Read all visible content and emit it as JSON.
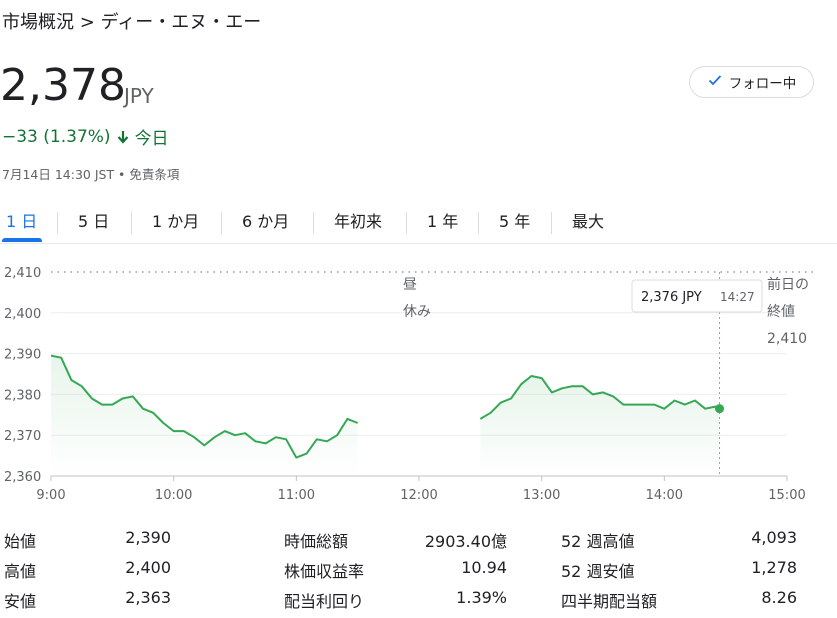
{
  "breadcrumb": "市場概況 > ディー・エヌ・エー",
  "price": "2,378",
  "currency": "JPY",
  "change": {
    "amount": "−33 (1.37%)",
    "period": "今日",
    "direction": "down",
    "color": "#137333"
  },
  "meta": "7月14日 14:30 JST • 免責条項",
  "follow_button": {
    "label": "フォロー中",
    "icon": "check-icon"
  },
  "tabs": [
    "1 日",
    "5 日",
    "1 か月",
    "6 か月",
    "年初来",
    "1 年",
    "5 年",
    "最大"
  ],
  "active_tab": 0,
  "tooltip": {
    "price": "2,376 JPY",
    "time": "14:27"
  },
  "break_label": [
    "昼",
    "休み"
  ],
  "prev_close_label": [
    "前日の",
    "終値",
    "2,410"
  ],
  "chart_data": {
    "type": "line",
    "line_color": "#34a853",
    "ylim": [
      2360,
      2410
    ],
    "yticks": [
      "2,410",
      "2,400",
      "2,390",
      "2,380",
      "2,370",
      "2,360"
    ],
    "xticks": [
      "9:00",
      "10:00",
      "11:00",
      "12:00",
      "13:00",
      "14:00",
      "15:00"
    ],
    "previous_close": 2410,
    "series": [
      {
        "session": "morning",
        "points": [
          [
            "9:00",
            2389.5
          ],
          [
            "9:05",
            2389
          ],
          [
            "9:10",
            2383.5
          ],
          [
            "9:15",
            2382
          ],
          [
            "9:20",
            2379
          ],
          [
            "9:25",
            2377.5
          ],
          [
            "9:30",
            2377.5
          ],
          [
            "9:35",
            2379
          ],
          [
            "9:40",
            2379.5
          ],
          [
            "9:45",
            2376.5
          ],
          [
            "9:50",
            2375.5
          ],
          [
            "9:55",
            2373
          ],
          [
            "10:00",
            2371
          ],
          [
            "10:05",
            2371
          ],
          [
            "10:10",
            2369.5
          ],
          [
            "10:15",
            2367.5
          ],
          [
            "10:20",
            2369.5
          ],
          [
            "10:25",
            2371
          ],
          [
            "10:30",
            2370
          ],
          [
            "10:35",
            2370.5
          ],
          [
            "10:40",
            2368.5
          ],
          [
            "10:45",
            2368
          ],
          [
            "10:50",
            2369.5
          ],
          [
            "10:55",
            2369
          ],
          [
            "11:00",
            2364.5
          ],
          [
            "11:05",
            2365.5
          ],
          [
            "11:10",
            2369
          ],
          [
            "11:15",
            2368.5
          ],
          [
            "11:20",
            2370
          ],
          [
            "11:25",
            2374
          ],
          [
            "11:30",
            2373
          ]
        ]
      },
      {
        "session": "afternoon",
        "points": [
          [
            "12:30",
            2374
          ],
          [
            "12:35",
            2375.5
          ],
          [
            "12:40",
            2378
          ],
          [
            "12:45",
            2379
          ],
          [
            "12:50",
            2382.5
          ],
          [
            "12:55",
            2384.5
          ],
          [
            "13:00",
            2384
          ],
          [
            "13:05",
            2380.5
          ],
          [
            "13:10",
            2381.5
          ],
          [
            "13:15",
            2382
          ],
          [
            "13:20",
            2382
          ],
          [
            "13:25",
            2380
          ],
          [
            "13:30",
            2380.5
          ],
          [
            "13:35",
            2379.5
          ],
          [
            "13:40",
            2377.5
          ],
          [
            "13:45",
            2377.5
          ],
          [
            "13:50",
            2377.5
          ],
          [
            "13:55",
            2377.5
          ],
          [
            "14:00",
            2376.5
          ],
          [
            "14:05",
            2378.5
          ],
          [
            "14:10",
            2377.5
          ],
          [
            "14:15",
            2378.5
          ],
          [
            "14:20",
            2376.5
          ],
          [
            "14:25",
            2377
          ],
          [
            "14:27",
            2376.5
          ]
        ]
      }
    ]
  },
  "stats": [
    [
      {
        "label": "始値",
        "value": "2,390"
      },
      {
        "label": "時価総額",
        "value": "2903.40億"
      },
      {
        "label": "52 週高値",
        "value": "4,093"
      }
    ],
    [
      {
        "label": "高値",
        "value": "2,400"
      },
      {
        "label": "株価収益率",
        "value": "10.94"
      },
      {
        "label": "52 週安値",
        "value": "1,278"
      }
    ],
    [
      {
        "label": "安値",
        "value": "2,363"
      },
      {
        "label": "配当利回り",
        "value": "1.39%"
      },
      {
        "label": "四半期配当額",
        "value": "8.26"
      }
    ]
  ]
}
